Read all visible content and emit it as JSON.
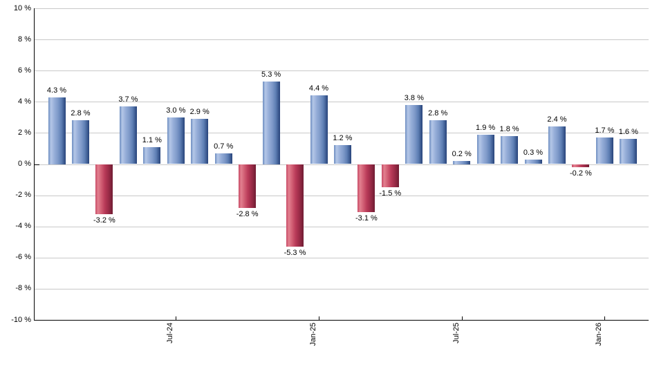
{
  "chart_data": {
    "type": "bar",
    "values": [
      4.3,
      2.8,
      -3.2,
      3.7,
      1.1,
      3.0,
      2.9,
      0.7,
      -2.8,
      5.3,
      -5.3,
      4.4,
      1.2,
      -3.1,
      -1.5,
      3.8,
      2.8,
      0.2,
      1.9,
      1.8,
      0.3,
      2.4,
      -0.2,
      1.7,
      1.6
    ],
    "bar_labels": [
      "4.3 %",
      "2.8 %",
      "-3.2 %",
      "3.7 %",
      "1.1 %",
      "3.0 %",
      "2.9 %",
      "0.7 %",
      "-2.8 %",
      "5.3 %",
      "-5.3 %",
      "4.4 %",
      "1.2 %",
      "-3.1 %",
      "-1.5 %",
      "3.8 %",
      "2.8 %",
      "0.2 %",
      "1.9 %",
      "1.8 %",
      "0.3 %",
      "2.4 %",
      "-0.2 %",
      "1.7 %",
      "1.6 %"
    ],
    "x_tick_labels": [
      {
        "bar_index": 5,
        "label": "Jul-24"
      },
      {
        "bar_index": 11,
        "label": "Jan-25"
      },
      {
        "bar_index": 17,
        "label": "Jul-25"
      },
      {
        "bar_index": 23,
        "label": "Jan-26"
      }
    ],
    "y_axis": {
      "min": -10,
      "max": 10,
      "step": 2,
      "unit": "%",
      "tick_labels": [
        "10 %",
        "8 %",
        "6 %",
        "4 %",
        "2 %",
        "0 %",
        "-2 %",
        "-4 %",
        "-6 %",
        "-8 %",
        "-10 %"
      ]
    },
    "grid": true,
    "legend": null,
    "colors": {
      "positive_gradient": [
        "#6d8cc0",
        "#b4c7e7",
        "#96aed8",
        "#7f9ac9",
        "#5e7fb4",
        "#27437a"
      ],
      "negative_gradient": [
        "#c84a66",
        "#e2808f",
        "#d05c72",
        "#b83a58",
        "#9c2c48",
        "#701d33"
      ],
      "gridline": "#c8c8c8",
      "axis": "#000000",
      "text": "#000000",
      "background": "#ffffff"
    }
  }
}
